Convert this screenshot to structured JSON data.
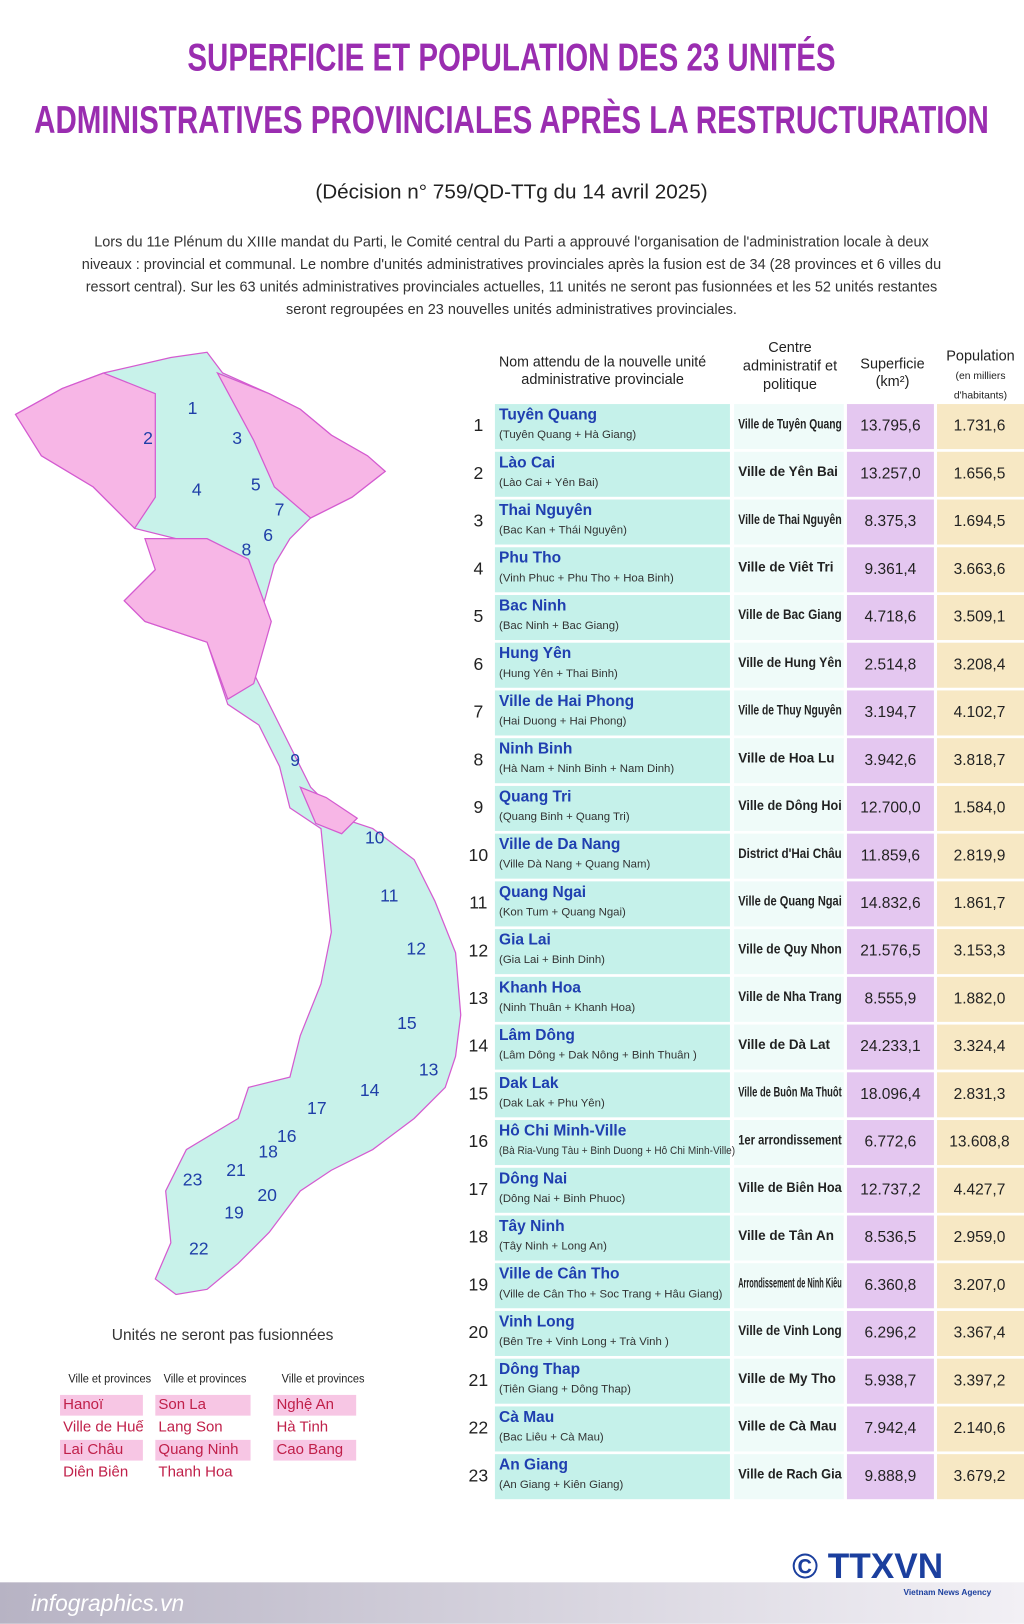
{
  "header": {
    "title_lines": [
      "SUPERFICIE ET POPULATION DES 23 UNITÉS",
      "ADMINISTRATIVES PROVINCIALES APRÈS LA RESTRUCTURATION"
    ],
    "subtitle": "(Décision n° 759/QD-TTg du 14 avril 2025)",
    "intro_lines": [
      "Lors du 11e Plénum du XIIIe mandat du Parti, le Comité central du Parti a approuvé l'organisation de l'administration locale à deux",
      "niveaux : provincial et communal. Le nombre d'unités administratives provinciales après la fusion est de 34 (28 provinces et 6 villes du",
      "ressort central). Sur les 63 unités administratives provinciales actuelles, 11 unités ne seront pas fusionnées et les 52 unités restantes",
      "seront regroupées en 23 nouvelles unités administratives provinciales."
    ]
  },
  "map": {
    "labels": [
      "1",
      "2",
      "3",
      "4",
      "5",
      "6",
      "7",
      "8",
      "9",
      "10",
      "11",
      "12",
      "13",
      "14",
      "15",
      "16",
      "17",
      "18",
      "19",
      "20",
      "21",
      "22",
      "23"
    ]
  },
  "unmerged": {
    "title": "Unités ne seront pas fusionnées",
    "columns": [
      {
        "header": "Ville et provinces",
        "items": [
          "Hanoï",
          "Ville de Huế",
          "Lai Châu",
          "Diên Biên"
        ]
      },
      {
        "header": "Ville et provinces",
        "items": [
          "Son La",
          "Lang Son",
          "Quang Ninh",
          "Thanh Hoa"
        ]
      },
      {
        "header": "Ville et provinces",
        "items": [
          "Nghệ An",
          "Hà Tinh",
          "Cao Bang"
        ]
      }
    ]
  },
  "table": {
    "headers": {
      "name": [
        "Nom attendu de la nouvelle unité",
        "administrative provinciale"
      ],
      "center": [
        "Centre",
        "administratif et",
        "politique"
      ],
      "area": [
        "Superficie",
        "(km²)"
      ],
      "population": [
        "Population",
        "(en milliers",
        "d'habitants)"
      ]
    },
    "rows": [
      {
        "num": 1,
        "name": "Tuyên Quang",
        "composition": "(Tuyên Quang + Hà Giang)",
        "center": "Ville de Tuyên Quang",
        "area": "13.795,6",
        "population": "1.731,6"
      },
      {
        "num": 2,
        "name": "Lào Cai",
        "composition": "(Lào Cai + Yên Bai)",
        "center": "Ville de Yên Bai",
        "area": "13.257,0",
        "population": "1.656,5"
      },
      {
        "num": 3,
        "name": "Thai Nguyên",
        "composition": "(Bac Kan + Thái Nguyên)",
        "center": "Ville de Thai Nguyên",
        "area": "8.375,3",
        "population": "1.694,5"
      },
      {
        "num": 4,
        "name": "Phu Tho",
        "composition": "(Vinh Phuc + Phu Tho + Hoa Binh)",
        "center": "Ville de Viêt Tri",
        "area": "9.361,4",
        "population": "3.663,6"
      },
      {
        "num": 5,
        "name": "Bac Ninh",
        "composition": "(Bac Ninh + Bac Giang)",
        "center": "Ville de Bac Giang",
        "area": "4.718,6",
        "population": "3.509,1"
      },
      {
        "num": 6,
        "name": "Hung Yên",
        "composition": "(Hung Yên + Thai Binh)",
        "center": "Ville de Hung Yên",
        "area": "2.514,8",
        "population": "3.208,4"
      },
      {
        "num": 7,
        "name": "Ville de Hai Phong",
        "composition": "(Hai Duong + Hai Phong)",
        "center": "Ville de Thuy Nguyên",
        "area": "3.194,7",
        "population": "4.102,7"
      },
      {
        "num": 8,
        "name": "Ninh Binh",
        "composition": "(Hà Nam + Ninh Binh + Nam Dinh)",
        "center": "Ville de Hoa Lu",
        "area": "3.942,6",
        "population": "3.818,7"
      },
      {
        "num": 9,
        "name": "Quang Tri",
        "composition": "(Quang Binh + Quang Tri)",
        "center": "Ville de Dông Hoi",
        "area": "12.700,0",
        "population": "1.584,0"
      },
      {
        "num": 10,
        "name": "Ville de Da Nang",
        "composition": "(Ville Dà Nang + Quang Nam)",
        "center": "District d'Hai Châu",
        "area": "11.859,6",
        "population": "2.819,9"
      },
      {
        "num": 11,
        "name": "Quang Ngai",
        "composition": "(Kon Tum + Quang Ngai)",
        "center": "Ville de Quang Ngai",
        "area": "14.832,6",
        "population": "1.861,7"
      },
      {
        "num": 12,
        "name": "Gia Lai",
        "composition": "(Gia Lai + Binh Dinh)",
        "center": "Ville de Quy Nhon",
        "area": "21.576,5",
        "population": "3.153,3"
      },
      {
        "num": 13,
        "name": "Khanh Hoa",
        "composition": "(Ninh Thuân + Khanh Hoa)",
        "center": "Ville de Nha Trang",
        "area": "8.555,9",
        "population": "1.882,0"
      },
      {
        "num": 14,
        "name": "Lâm Dông",
        "composition": "(Lâm Dông + Dak Nông + Binh Thuân )",
        "center": "Ville de Dà Lat",
        "area": "24.233,1",
        "population": "3.324,4"
      },
      {
        "num": 15,
        "name": "Dak Lak",
        "composition": "(Dak Lak + Phu Yên)",
        "center": "Ville de Buôn Ma Thuôt",
        "area": "18.096,4",
        "population": "2.831,3"
      },
      {
        "num": 16,
        "name": "Hô Chi Minh-Ville",
        "composition": "(Bà Ria-Vung Tàu + Binh Duong + Hô Chi Minh-Ville)",
        "center": "1er arrondissement",
        "area": "6.772,6",
        "population": "13.608,8"
      },
      {
        "num": 17,
        "name": "Dông Nai",
        "composition": "(Dông Nai + Binh Phuoc)",
        "center": "Ville de Biên Hoa",
        "area": "12.737,2",
        "population": "4.427,7"
      },
      {
        "num": 18,
        "name": "Tây Ninh",
        "composition": "(Tây Ninh + Long An)",
        "center": "Ville de Tân An",
        "area": "8.536,5",
        "population": "2.959,0"
      },
      {
        "num": 19,
        "name": "Ville de Cân Tho",
        "composition": "(Ville de Cân Tho + Soc Trang + Hâu Giang)",
        "center": "Arrondissement de Ninh Kiêu",
        "area": "6.360,8",
        "population": "3.207,0"
      },
      {
        "num": 20,
        "name": "Vinh Long",
        "composition": "(Bên Tre + Vinh Long + Trà Vinh )",
        "center": "Ville de Vinh Long",
        "area": "6.296,2",
        "population": "3.367,4"
      },
      {
        "num": 21,
        "name": "Dông Thap",
        "composition": "(Tiên Giang + Dông Thap)",
        "center": "Ville de My Tho",
        "area": "5.938,7",
        "population": "3.397,2"
      },
      {
        "num": 22,
        "name": "Cà Mau",
        "composition": "(Bac Liêu + Cà Mau)",
        "center": "Ville de Cà Mau",
        "area": "7.942,4",
        "population": "2.140,6"
      },
      {
        "num": 23,
        "name": "An Giang",
        "composition": "(An Giang + Kiên Giang)",
        "center": "Ville de Rach Gia",
        "area": "9.888,9",
        "population": "3.679,2"
      }
    ]
  },
  "footer": {
    "site": "infographics.vn",
    "logo": "© TTXVN",
    "agency": "Vietnam News Agency"
  }
}
